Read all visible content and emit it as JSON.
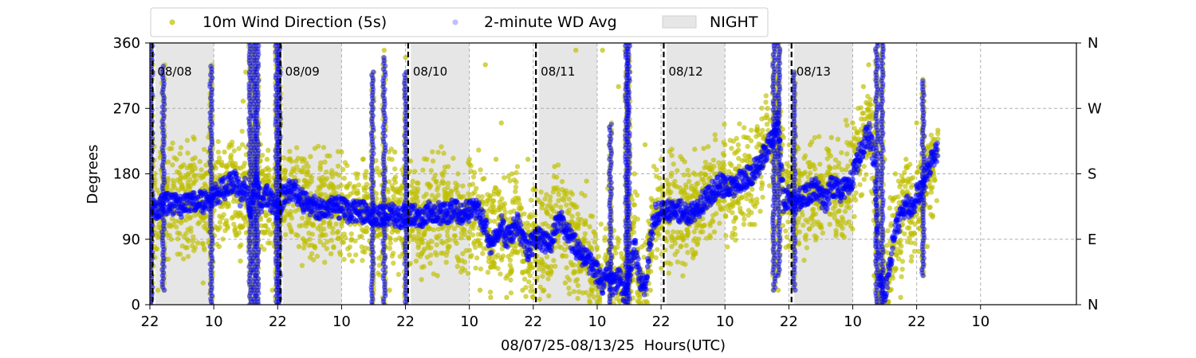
{
  "chart_data": {
    "type": "scatter",
    "title": "",
    "xlabel": "08/07/25-08/13/25  Hours(UTC)",
    "ylabel": "Degrees",
    "ylim": [
      0,
      360
    ],
    "yticks": [
      0,
      90,
      180,
      270,
      360
    ],
    "y2ticks": [
      "N",
      "E",
      "S",
      "W",
      "N"
    ],
    "xlim_hours": [
      0,
      174
    ],
    "xtick_hours": [
      0,
      12,
      24,
      36,
      48,
      60,
      72,
      84,
      96,
      108,
      120,
      132,
      144,
      156
    ],
    "xticks": [
      "22",
      "10",
      "22",
      "10",
      "22",
      "10",
      "22",
      "10",
      "22",
      "10",
      "22",
      "10",
      "22",
      "10"
    ],
    "grid": true,
    "legend_position": "top",
    "legend": {
      "wind": "10m Wind Direction (5s)",
      "avg": "2-minute WD Avg",
      "night": "NIGHT"
    },
    "colors": {
      "wind": "#bfbf00",
      "avg": "#0000ff",
      "night": "#e6e6e6",
      "midnight_line": "#000000"
    },
    "day_markers": [
      {
        "label": "08/08",
        "hour": 0.5
      },
      {
        "label": "08/09",
        "hour": 24.5
      },
      {
        "label": "08/10",
        "hour": 48.5
      },
      {
        "label": "08/11",
        "hour": 72.5
      },
      {
        "label": "08/12",
        "hour": 96.5
      },
      {
        "label": "08/13",
        "hour": 120.5
      }
    ],
    "night_periods_hours": [
      [
        1,
        12
      ],
      [
        25,
        36
      ],
      [
        49,
        60
      ],
      [
        73,
        84
      ],
      [
        97,
        108
      ],
      [
        121,
        132
      ]
    ],
    "avg_trace": [
      [
        0,
        60
      ],
      [
        0.5,
        130
      ],
      [
        2,
        135
      ],
      [
        4,
        140
      ],
      [
        6,
        135
      ],
      [
        8,
        145
      ],
      [
        10,
        140
      ],
      [
        12,
        150
      ],
      [
        14,
        160
      ],
      [
        16,
        170
      ],
      [
        17,
        150
      ],
      [
        18,
        160
      ],
      [
        19,
        130
      ],
      [
        20,
        170
      ],
      [
        21,
        140
      ],
      [
        22,
        150
      ],
      [
        23,
        140
      ],
      [
        24,
        130
      ],
      [
        25,
        150
      ],
      [
        27,
        160
      ],
      [
        29,
        140
      ],
      [
        31,
        135
      ],
      [
        33,
        130
      ],
      [
        35,
        135
      ],
      [
        37,
        128
      ],
      [
        39,
        130
      ],
      [
        41,
        125
      ],
      [
        43,
        120
      ],
      [
        45,
        125
      ],
      [
        47,
        120
      ],
      [
        49,
        125
      ],
      [
        51,
        120
      ],
      [
        53,
        130
      ],
      [
        55,
        125
      ],
      [
        57,
        130
      ],
      [
        59,
        125
      ],
      [
        61,
        135
      ],
      [
        63,
        110
      ],
      [
        64,
        80
      ],
      [
        65,
        100
      ],
      [
        66,
        110
      ],
      [
        67,
        90
      ],
      [
        69,
        110
      ],
      [
        71,
        75
      ],
      [
        73,
        95
      ],
      [
        75,
        80
      ],
      [
        77,
        120
      ],
      [
        79,
        90
      ],
      [
        81,
        70
      ],
      [
        83,
        55
      ],
      [
        85,
        30
      ],
      [
        86,
        45
      ],
      [
        87,
        25
      ],
      [
        88,
        40
      ],
      [
        89,
        15
      ],
      [
        90,
        40
      ],
      [
        91,
        80
      ],
      [
        92,
        35
      ],
      [
        93,
        20
      ],
      [
        94,
        90
      ],
      [
        95,
        125
      ],
      [
        97,
        128
      ],
      [
        99,
        130
      ],
      [
        101,
        125
      ],
      [
        103,
        135
      ],
      [
        105,
        150
      ],
      [
        107,
        165
      ],
      [
        109,
        160
      ],
      [
        111,
        170
      ],
      [
        113,
        180
      ],
      [
        115,
        200
      ],
      [
        117,
        230
      ],
      [
        118,
        255
      ],
      [
        119,
        140
      ],
      [
        120,
        150
      ],
      [
        121,
        140
      ],
      [
        123,
        150
      ],
      [
        125,
        160
      ],
      [
        127,
        140
      ],
      [
        128,
        165
      ],
      [
        130,
        155
      ],
      [
        132,
        175
      ],
      [
        133,
        200
      ],
      [
        134,
        220
      ],
      [
        135,
        240
      ],
      [
        136,
        200
      ],
      [
        137,
        40
      ],
      [
        138,
        10
      ],
      [
        139,
        60
      ],
      [
        140,
        100
      ],
      [
        141,
        120
      ],
      [
        142,
        140
      ],
      [
        143,
        130
      ],
      [
        144,
        150
      ],
      [
        145,
        160
      ],
      [
        146,
        180
      ],
      [
        147,
        200
      ],
      [
        148,
        215
      ]
    ],
    "avg_spikes": [
      [
        0.3,
        0,
        360
      ],
      [
        2.5,
        20,
        330
      ],
      [
        11.5,
        0,
        330
      ],
      [
        18.8,
        0,
        360
      ],
      [
        19.6,
        0,
        360
      ],
      [
        20.2,
        0,
        360
      ],
      [
        23.8,
        0,
        360
      ],
      [
        24.3,
        0,
        360
      ],
      [
        41.8,
        0,
        320
      ],
      [
        44,
        0,
        340
      ],
      [
        48,
        0,
        320
      ],
      [
        86.5,
        0,
        250
      ],
      [
        89.5,
        0,
        360
      ],
      [
        89.9,
        0,
        360
      ],
      [
        117.2,
        20,
        360
      ],
      [
        118.1,
        40,
        360
      ],
      [
        121,
        20,
        320
      ],
      [
        136.5,
        0,
        360
      ],
      [
        137.5,
        0,
        360
      ],
      [
        145.2,
        40,
        310
      ]
    ],
    "wind_points": [
      [
        0.4,
        320
      ],
      [
        1.5,
        20
      ],
      [
        2,
        210
      ],
      [
        3,
        100
      ],
      [
        4,
        90
      ],
      [
        5,
        200
      ],
      [
        6,
        190
      ],
      [
        7,
        90
      ],
      [
        8,
        200
      ],
      [
        9,
        85
      ],
      [
        10,
        30
      ],
      [
        11,
        210
      ],
      [
        13,
        80
      ],
      [
        14,
        210
      ],
      [
        15,
        220
      ],
      [
        16,
        100
      ],
      [
        17,
        60
      ],
      [
        17.5,
        280
      ],
      [
        18,
        320
      ],
      [
        19,
        300
      ],
      [
        20,
        40
      ],
      [
        21,
        100
      ],
      [
        22,
        200
      ],
      [
        23,
        20
      ],
      [
        24.5,
        300
      ],
      [
        26,
        200
      ],
      [
        28,
        80
      ],
      [
        29,
        200
      ],
      [
        30,
        90
      ],
      [
        32,
        190
      ],
      [
        34,
        70
      ],
      [
        36,
        210
      ],
      [
        38,
        60
      ],
      [
        40,
        200
      ],
      [
        42,
        40
      ],
      [
        44,
        350
      ],
      [
        45,
        20
      ],
      [
        46,
        210
      ],
      [
        48,
        340
      ],
      [
        50,
        60
      ],
      [
        52,
        200
      ],
      [
        54,
        40
      ],
      [
        56,
        190
      ],
      [
        58,
        60
      ],
      [
        60,
        200
      ],
      [
        62,
        20
      ],
      [
        63,
        330
      ],
      [
        64,
        10
      ],
      [
        65,
        200
      ],
      [
        66,
        250
      ],
      [
        67,
        10
      ],
      [
        68,
        180
      ],
      [
        70,
        20
      ],
      [
        71,
        200
      ],
      [
        72,
        10
      ],
      [
        74,
        20
      ],
      [
        76,
        190
      ],
      [
        78,
        30
      ],
      [
        80,
        350
      ],
      [
        82,
        170
      ],
      [
        84,
        0
      ],
      [
        85,
        350
      ],
      [
        86,
        160
      ],
      [
        88,
        300
      ],
      [
        89,
        5
      ],
      [
        90,
        340
      ],
      [
        91,
        180
      ],
      [
        92,
        10
      ],
      [
        93,
        220
      ],
      [
        94,
        20
      ],
      [
        96,
        200
      ],
      [
        98,
        80
      ],
      [
        100,
        200
      ],
      [
        102,
        70
      ],
      [
        104,
        215
      ],
      [
        106,
        100
      ],
      [
        108,
        220
      ],
      [
        110,
        120
      ],
      [
        112,
        230
      ],
      [
        114,
        140
      ],
      [
        116,
        270
      ],
      [
        117,
        300
      ],
      [
        118,
        20
      ],
      [
        119,
        230
      ],
      [
        120,
        80
      ],
      [
        121,
        230
      ],
      [
        122,
        100
      ],
      [
        124,
        220
      ],
      [
        126,
        110
      ],
      [
        128,
        230
      ],
      [
        130,
        120
      ],
      [
        132,
        250
      ],
      [
        133,
        270
      ],
      [
        134,
        300
      ],
      [
        135,
        330
      ],
      [
        136,
        40
      ],
      [
        137,
        30
      ],
      [
        138,
        200
      ],
      [
        139,
        20
      ],
      [
        140,
        180
      ],
      [
        141,
        10
      ],
      [
        142,
        200
      ],
      [
        143,
        60
      ],
      [
        144,
        250
      ],
      [
        145,
        290
      ],
      [
        146,
        80
      ],
      [
        147,
        180
      ],
      [
        148,
        240
      ]
    ]
  }
}
